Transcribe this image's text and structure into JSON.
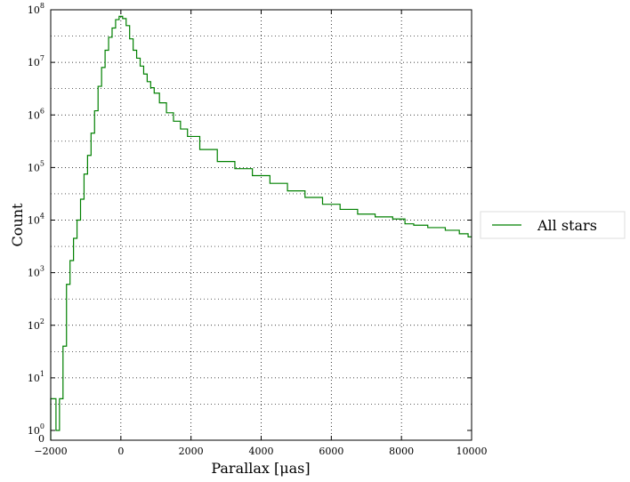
{
  "chart_data": {
    "type": "line",
    "style": "step-histogram",
    "xlabel": "Parallax [μas]",
    "ylabel": "Count",
    "xlim": [
      -2000,
      10000
    ],
    "ylim": [
      1,
      100000000
    ],
    "yscale": "log",
    "grid": true,
    "legend_placement": "right",
    "x_ticks": [
      "−2000",
      "0",
      "2000",
      "4000",
      "6000",
      "8000",
      "10000"
    ],
    "y_ticks": [
      {
        "base": "10",
        "exp": "0"
      },
      {
        "base": "10",
        "exp": "1"
      },
      {
        "base": "10",
        "exp": "2"
      },
      {
        "base": "10",
        "exp": "3"
      },
      {
        "base": "10",
        "exp": "4"
      },
      {
        "base": "10",
        "exp": "5"
      },
      {
        "base": "10",
        "exp": "6"
      },
      {
        "base": "10",
        "exp": "7"
      },
      {
        "base": "10",
        "exp": "8"
      }
    ],
    "y_zero_label": "0",
    "series": [
      {
        "name": "All stars",
        "color": "#008000",
        "x": [
          -1900,
          -1800,
          -1700,
          -1600,
          -1500,
          -1400,
          -1300,
          -1200,
          -1100,
          -1000,
          -900,
          -800,
          -700,
          -600,
          -500,
          -400,
          -300,
          -200,
          -100,
          0,
          100,
          200,
          300,
          400,
          500,
          600,
          700,
          800,
          900,
          1000,
          1200,
          1400,
          1600,
          1800,
          2000,
          2500,
          3000,
          3500,
          4000,
          4500,
          5000,
          5500,
          6000,
          6500,
          7000,
          7500,
          8000,
          8200,
          8500,
          9000,
          9500,
          9800,
          10000
        ],
        "y": [
          4,
          1,
          4,
          40,
          600,
          1700,
          4500,
          10000,
          25000,
          75000,
          170000,
          450000,
          1200000,
          3500000,
          8000000,
          17000000,
          30000000,
          45000000,
          65000000,
          75000000,
          68000000,
          50000000,
          28000000,
          17000000,
          12000000,
          8500000,
          6000000,
          4300000,
          3300000,
          2600000,
          1700000,
          1100000,
          760000,
          540000,
          390000,
          220000,
          130000,
          95000,
          70000,
          50000,
          36000,
          27000,
          20000,
          16000,
          13000,
          11500,
          10500,
          8500,
          8000,
          7200,
          6400,
          5500,
          4800
        ]
      }
    ]
  }
}
